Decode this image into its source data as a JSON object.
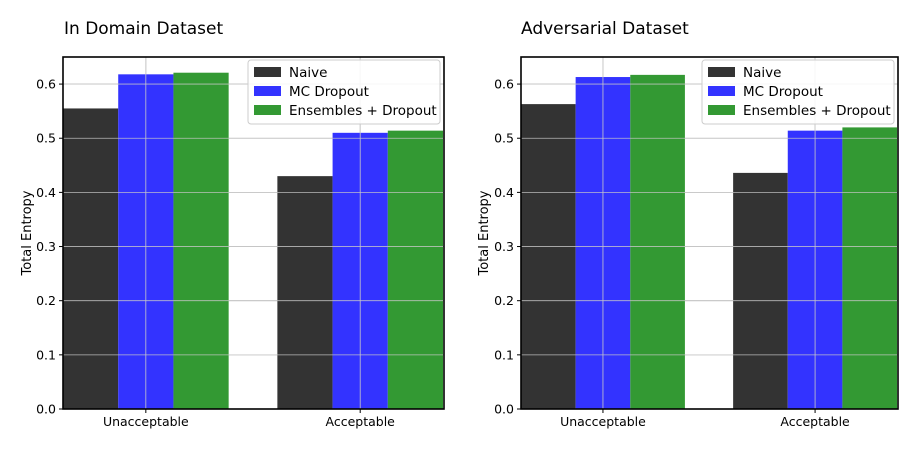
{
  "chart_data": [
    {
      "type": "bar",
      "title": "In Domain Dataset",
      "xlabel": "",
      "ylabel": "Total Entropy",
      "ylim": [
        0,
        0.65
      ],
      "yticks": [
        "0.0",
        "0.1",
        "0.2",
        "0.3",
        "0.4",
        "0.5",
        "0.6"
      ],
      "categories": [
        "Unacceptable",
        "Acceptable"
      ],
      "grid": true,
      "legend_position": "top-right",
      "series": [
        {
          "name": "Naive",
          "color": "#333333",
          "values": [
            0.555,
            0.43
          ]
        },
        {
          "name": "MC Dropout",
          "color": "#3333ff",
          "values": [
            0.618,
            0.51
          ]
        },
        {
          "name": "Ensembles + Dropout",
          "color": "#339933",
          "values": [
            0.621,
            0.514
          ]
        }
      ]
    },
    {
      "type": "bar",
      "title": "Adversarial Dataset",
      "xlabel": "",
      "ylabel": "Total Entropy",
      "ylim": [
        0,
        0.65
      ],
      "yticks": [
        "0.0",
        "0.1",
        "0.2",
        "0.3",
        "0.4",
        "0.5",
        "0.6"
      ],
      "categories": [
        "Unacceptable",
        "Acceptable"
      ],
      "grid": true,
      "legend_position": "top-right",
      "series": [
        {
          "name": "Naive",
          "color": "#333333",
          "values": [
            0.563,
            0.436
          ]
        },
        {
          "name": "MC Dropout",
          "color": "#3333ff",
          "values": [
            0.613,
            0.514
          ]
        },
        {
          "name": "Ensembles + Dropout",
          "color": "#339933",
          "values": [
            0.617,
            0.52
          ]
        }
      ]
    }
  ]
}
